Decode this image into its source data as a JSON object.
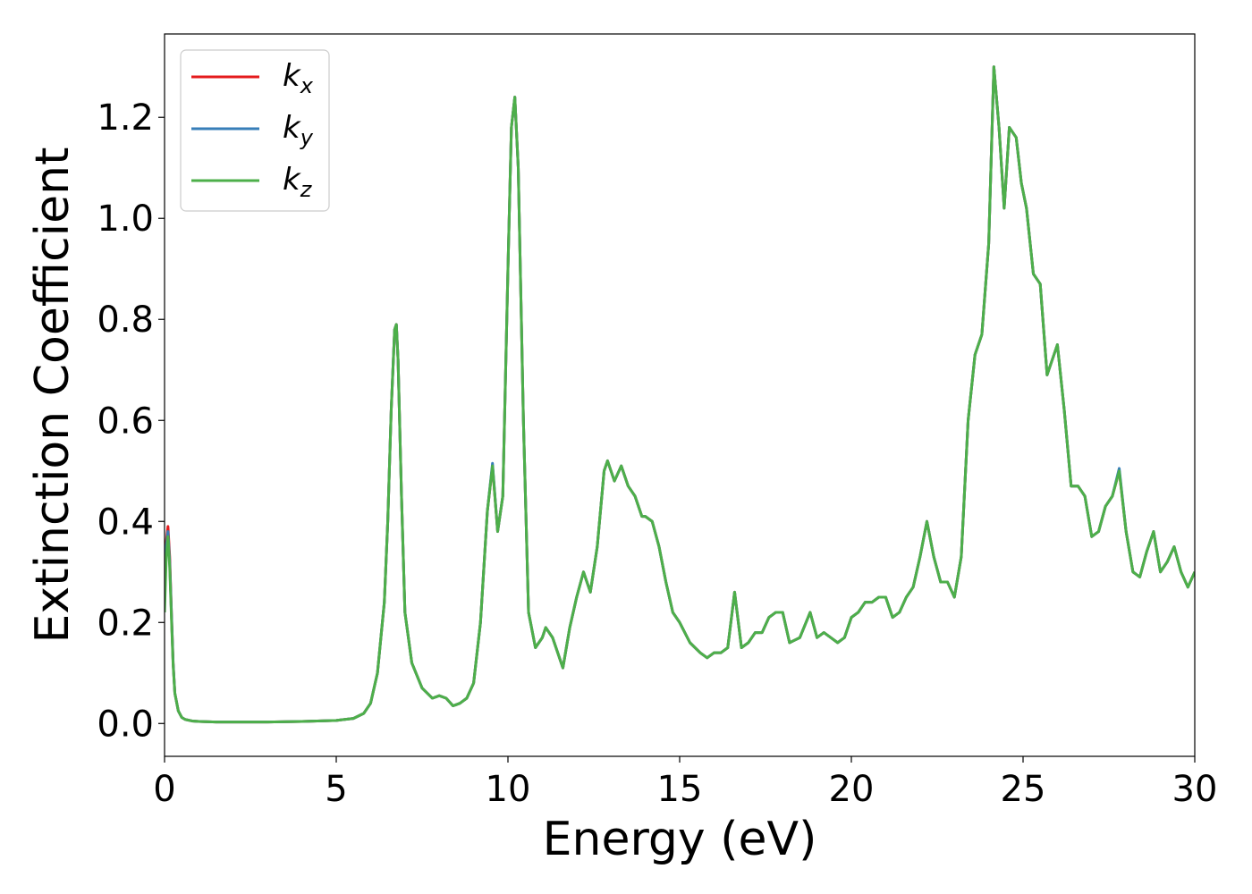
{
  "chart_data": {
    "type": "line",
    "xlabel": "Energy (eV)",
    "ylabel": "Extinction Coefficient",
    "xlim": [
      0,
      30
    ],
    "ylim": [
      -0.065,
      1.365
    ],
    "xticks": [
      0,
      5,
      10,
      15,
      20,
      25,
      30
    ],
    "yticks": [
      0.0,
      0.2,
      0.4,
      0.6,
      0.8,
      1.0,
      1.2
    ],
    "xtick_labels": [
      "0",
      "5",
      "10",
      "15",
      "20",
      "25",
      "30"
    ],
    "ytick_labels": [
      "0.0",
      "0.2",
      "0.4",
      "0.6",
      "0.8",
      "1.0",
      "1.2"
    ],
    "grid": false,
    "legend_position": "top-left",
    "legend": [
      {
        "base": "k",
        "sub": "x",
        "color": "#e41a1c"
      },
      {
        "base": "k",
        "sub": "y",
        "color": "#377eb8"
      },
      {
        "base": "k",
        "sub": "z",
        "color": "#4daf4a"
      }
    ],
    "series": [
      {
        "color": "#e41a1c",
        "x": [
          0.0,
          0.05,
          0.1,
          0.15,
          0.2,
          0.25,
          0.3,
          0.4,
          0.5,
          0.6,
          0.8,
          1.0,
          1.5,
          2.0,
          3.0,
          4.0,
          5.0,
          5.5,
          5.8,
          6.0,
          6.2,
          6.4,
          6.5,
          6.6,
          6.7,
          6.75,
          6.8,
          6.9,
          7.0,
          7.2,
          7.5,
          7.8,
          8.0,
          8.2,
          8.4,
          8.6,
          8.8,
          9.0,
          9.2,
          9.4,
          9.55,
          9.7,
          9.85,
          10.0,
          10.1,
          10.2,
          10.3,
          10.45,
          10.6,
          10.8,
          11.0,
          11.1,
          11.3,
          11.6,
          11.8,
          12.0,
          12.2,
          12.4,
          12.6,
          12.8,
          12.9,
          13.1,
          13.3,
          13.5,
          13.7,
          13.9,
          14.0,
          14.2,
          14.4,
          14.6,
          14.8,
          15.0,
          15.3,
          15.6,
          15.8,
          16.0,
          16.2,
          16.4,
          16.6,
          16.8,
          17.0,
          17.2,
          17.4,
          17.6,
          17.8,
          18.0,
          18.2,
          18.5,
          18.8,
          19.0,
          19.2,
          19.4,
          19.6,
          19.8,
          20.0,
          20.2,
          20.4,
          20.6,
          20.8,
          21.0,
          21.2,
          21.4,
          21.6,
          21.8,
          22.0,
          22.2,
          22.4,
          22.6,
          22.8,
          23.0,
          23.2,
          23.4,
          23.6,
          23.8,
          24.0,
          24.15,
          24.3,
          24.45,
          24.6,
          24.8,
          24.95,
          25.1,
          25.3,
          25.5,
          25.7,
          25.85,
          26.0,
          26.2,
          26.4,
          26.6,
          26.8,
          27.0,
          27.2,
          27.4,
          27.6,
          27.8,
          28.0,
          28.2,
          28.4,
          28.6,
          28.8,
          29.0,
          29.2,
          29.4,
          29.6,
          29.8,
          30.0
        ],
        "y": [
          0.25,
          0.36,
          0.39,
          0.33,
          0.22,
          0.12,
          0.06,
          0.025,
          0.012,
          0.008,
          0.005,
          0.004,
          0.003,
          0.003,
          0.003,
          0.004,
          0.006,
          0.01,
          0.02,
          0.04,
          0.1,
          0.24,
          0.4,
          0.62,
          0.78,
          0.79,
          0.72,
          0.45,
          0.22,
          0.12,
          0.07,
          0.05,
          0.055,
          0.05,
          0.035,
          0.04,
          0.05,
          0.08,
          0.2,
          0.42,
          0.51,
          0.38,
          0.45,
          0.9,
          1.18,
          1.24,
          1.1,
          0.6,
          0.22,
          0.15,
          0.17,
          0.19,
          0.17,
          0.11,
          0.19,
          0.25,
          0.3,
          0.26,
          0.35,
          0.5,
          0.52,
          0.48,
          0.51,
          0.47,
          0.45,
          0.41,
          0.41,
          0.4,
          0.35,
          0.28,
          0.22,
          0.2,
          0.16,
          0.14,
          0.13,
          0.14,
          0.14,
          0.15,
          0.26,
          0.15,
          0.16,
          0.18,
          0.18,
          0.21,
          0.22,
          0.22,
          0.16,
          0.17,
          0.22,
          0.17,
          0.18,
          0.17,
          0.16,
          0.17,
          0.21,
          0.22,
          0.24,
          0.24,
          0.25,
          0.25,
          0.21,
          0.22,
          0.25,
          0.27,
          0.33,
          0.4,
          0.33,
          0.28,
          0.28,
          0.25,
          0.33,
          0.6,
          0.73,
          0.77,
          0.95,
          1.3,
          1.18,
          1.02,
          1.18,
          1.16,
          1.07,
          1.02,
          0.89,
          0.87,
          0.69,
          0.72,
          0.75,
          0.62,
          0.47,
          0.47,
          0.45,
          0.37,
          0.38,
          0.43,
          0.45,
          0.5,
          0.38,
          0.3,
          0.29,
          0.34,
          0.38,
          0.3,
          0.32,
          0.35,
          0.3,
          0.27,
          0.3
        ]
      },
      {
        "color": "#377eb8",
        "x": [
          0.0,
          0.05,
          0.1,
          0.15,
          0.2,
          0.25,
          0.3,
          0.4,
          0.5,
          0.6,
          0.8,
          1.0,
          1.5,
          2.0,
          3.0,
          4.0,
          5.0,
          5.5,
          5.8,
          6.0,
          6.2,
          6.4,
          6.5,
          6.6,
          6.7,
          6.75,
          6.8,
          6.9,
          7.0,
          7.2,
          7.5,
          7.8,
          8.0,
          8.2,
          8.4,
          8.6,
          8.8,
          9.0,
          9.2,
          9.4,
          9.55,
          9.7,
          9.85,
          10.0,
          10.1,
          10.2,
          10.3,
          10.45,
          10.6,
          10.8,
          11.0,
          11.1,
          11.3,
          11.6,
          11.8,
          12.0,
          12.2,
          12.4,
          12.6,
          12.8,
          12.9,
          13.1,
          13.3,
          13.5,
          13.7,
          13.9,
          14.0,
          14.2,
          14.4,
          14.6,
          14.8,
          15.0,
          15.3,
          15.6,
          15.8,
          16.0,
          16.2,
          16.4,
          16.6,
          16.8,
          17.0,
          17.2,
          17.4,
          17.6,
          17.8,
          18.0,
          18.2,
          18.5,
          18.8,
          19.0,
          19.2,
          19.4,
          19.6,
          19.8,
          20.0,
          20.2,
          20.4,
          20.6,
          20.8,
          21.0,
          21.2,
          21.4,
          21.6,
          21.8,
          22.0,
          22.2,
          22.4,
          22.6,
          22.8,
          23.0,
          23.2,
          23.4,
          23.6,
          23.8,
          24.0,
          24.15,
          24.3,
          24.45,
          24.6,
          24.8,
          24.95,
          25.1,
          25.3,
          25.5,
          25.7,
          25.85,
          26.0,
          26.2,
          26.4,
          26.6,
          26.8,
          27.0,
          27.2,
          27.4,
          27.6,
          27.8,
          28.0,
          28.2,
          28.4,
          28.6,
          28.8,
          29.0,
          29.2,
          29.4,
          29.6,
          29.8,
          30.0
        ],
        "y": [
          0.24,
          0.35,
          0.38,
          0.32,
          0.22,
          0.12,
          0.06,
          0.025,
          0.012,
          0.008,
          0.005,
          0.004,
          0.003,
          0.003,
          0.003,
          0.004,
          0.006,
          0.01,
          0.02,
          0.04,
          0.1,
          0.24,
          0.4,
          0.62,
          0.78,
          0.79,
          0.72,
          0.45,
          0.22,
          0.12,
          0.07,
          0.05,
          0.055,
          0.05,
          0.035,
          0.04,
          0.05,
          0.08,
          0.2,
          0.42,
          0.515,
          0.38,
          0.45,
          0.9,
          1.18,
          1.24,
          1.1,
          0.6,
          0.22,
          0.15,
          0.17,
          0.19,
          0.17,
          0.11,
          0.19,
          0.25,
          0.3,
          0.26,
          0.35,
          0.5,
          0.52,
          0.48,
          0.51,
          0.47,
          0.45,
          0.41,
          0.41,
          0.4,
          0.35,
          0.28,
          0.22,
          0.2,
          0.16,
          0.14,
          0.13,
          0.14,
          0.14,
          0.15,
          0.26,
          0.15,
          0.16,
          0.18,
          0.18,
          0.21,
          0.22,
          0.22,
          0.16,
          0.17,
          0.22,
          0.17,
          0.18,
          0.17,
          0.16,
          0.17,
          0.21,
          0.22,
          0.24,
          0.24,
          0.25,
          0.25,
          0.21,
          0.22,
          0.25,
          0.27,
          0.33,
          0.4,
          0.33,
          0.28,
          0.28,
          0.25,
          0.33,
          0.6,
          0.73,
          0.77,
          0.95,
          1.3,
          1.18,
          1.02,
          1.18,
          1.16,
          1.07,
          1.02,
          0.89,
          0.87,
          0.69,
          0.72,
          0.75,
          0.62,
          0.47,
          0.47,
          0.45,
          0.37,
          0.38,
          0.43,
          0.45,
          0.505,
          0.38,
          0.3,
          0.29,
          0.34,
          0.38,
          0.3,
          0.32,
          0.35,
          0.3,
          0.27,
          0.3
        ]
      },
      {
        "color": "#4daf4a",
        "x": [
          0.0,
          0.05,
          0.1,
          0.15,
          0.2,
          0.25,
          0.3,
          0.4,
          0.5,
          0.6,
          0.8,
          1.0,
          1.5,
          2.0,
          3.0,
          4.0,
          5.0,
          5.5,
          5.8,
          6.0,
          6.2,
          6.4,
          6.5,
          6.6,
          6.7,
          6.75,
          6.8,
          6.9,
          7.0,
          7.2,
          7.5,
          7.8,
          8.0,
          8.2,
          8.4,
          8.6,
          8.8,
          9.0,
          9.2,
          9.4,
          9.55,
          9.7,
          9.85,
          10.0,
          10.1,
          10.2,
          10.3,
          10.45,
          10.6,
          10.8,
          11.0,
          11.1,
          11.3,
          11.6,
          11.8,
          12.0,
          12.2,
          12.4,
          12.6,
          12.8,
          12.9,
          13.1,
          13.3,
          13.5,
          13.7,
          13.9,
          14.0,
          14.2,
          14.4,
          14.6,
          14.8,
          15.0,
          15.3,
          15.6,
          15.8,
          16.0,
          16.2,
          16.4,
          16.6,
          16.8,
          17.0,
          17.2,
          17.4,
          17.6,
          17.8,
          18.0,
          18.2,
          18.5,
          18.8,
          19.0,
          19.2,
          19.4,
          19.6,
          19.8,
          20.0,
          20.2,
          20.4,
          20.6,
          20.8,
          21.0,
          21.2,
          21.4,
          21.6,
          21.8,
          22.0,
          22.2,
          22.4,
          22.6,
          22.8,
          23.0,
          23.2,
          23.4,
          23.6,
          23.8,
          24.0,
          24.15,
          24.3,
          24.45,
          24.6,
          24.8,
          24.95,
          25.1,
          25.3,
          25.5,
          25.7,
          25.85,
          26.0,
          26.2,
          26.4,
          26.6,
          26.8,
          27.0,
          27.2,
          27.4,
          27.6,
          27.8,
          28.0,
          28.2,
          28.4,
          28.6,
          28.8,
          29.0,
          29.2,
          29.4,
          29.6,
          29.8,
          30.0
        ],
        "y": [
          0.22,
          0.33,
          0.37,
          0.31,
          0.21,
          0.115,
          0.06,
          0.025,
          0.012,
          0.008,
          0.005,
          0.004,
          0.003,
          0.003,
          0.003,
          0.004,
          0.006,
          0.01,
          0.02,
          0.04,
          0.1,
          0.24,
          0.4,
          0.62,
          0.78,
          0.79,
          0.72,
          0.45,
          0.22,
          0.12,
          0.07,
          0.05,
          0.055,
          0.05,
          0.035,
          0.04,
          0.05,
          0.08,
          0.2,
          0.42,
          0.51,
          0.38,
          0.45,
          0.9,
          1.18,
          1.24,
          1.1,
          0.6,
          0.22,
          0.15,
          0.17,
          0.19,
          0.17,
          0.11,
          0.19,
          0.25,
          0.3,
          0.26,
          0.35,
          0.5,
          0.52,
          0.48,
          0.51,
          0.47,
          0.45,
          0.41,
          0.41,
          0.4,
          0.35,
          0.28,
          0.22,
          0.2,
          0.16,
          0.14,
          0.13,
          0.14,
          0.14,
          0.15,
          0.26,
          0.15,
          0.16,
          0.18,
          0.18,
          0.21,
          0.22,
          0.22,
          0.16,
          0.17,
          0.22,
          0.17,
          0.18,
          0.17,
          0.16,
          0.17,
          0.21,
          0.22,
          0.24,
          0.24,
          0.25,
          0.25,
          0.21,
          0.22,
          0.25,
          0.27,
          0.33,
          0.4,
          0.33,
          0.28,
          0.28,
          0.25,
          0.33,
          0.6,
          0.73,
          0.77,
          0.95,
          1.3,
          1.18,
          1.02,
          1.18,
          1.16,
          1.07,
          1.02,
          0.89,
          0.87,
          0.69,
          0.72,
          0.75,
          0.62,
          0.47,
          0.47,
          0.45,
          0.37,
          0.38,
          0.43,
          0.45,
          0.5,
          0.38,
          0.3,
          0.29,
          0.34,
          0.38,
          0.3,
          0.32,
          0.35,
          0.3,
          0.27,
          0.3
        ]
      }
    ]
  }
}
